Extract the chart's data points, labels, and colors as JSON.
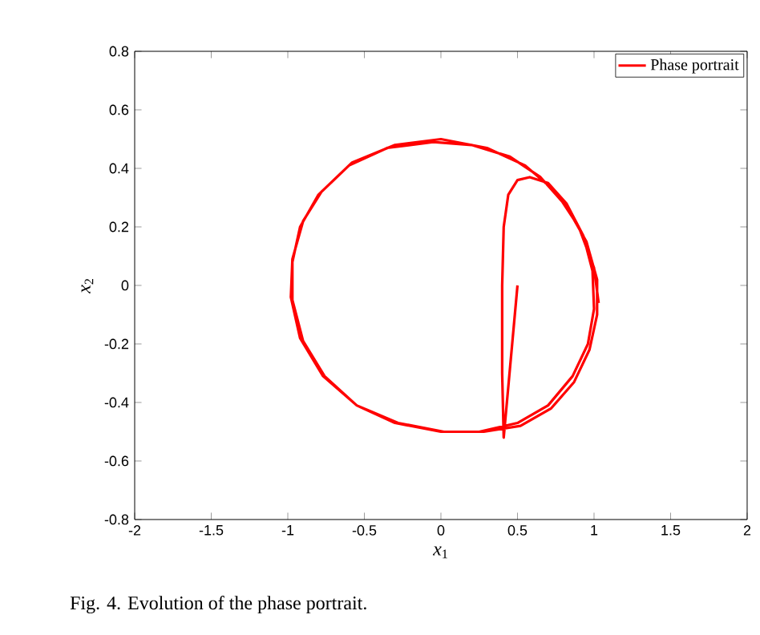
{
  "chart_data": {
    "type": "line",
    "xlabel": "*x*$_{1}$",
    "ylabel": "*x*$_{2}$",
    "annotations": [
      "Fig. 4.   Evolution of the phase portrait."
    ],
    "xlim": [
      -2,
      2
    ],
    "ylim": [
      -0.8,
      0.8
    ],
    "xticks": [
      -2,
      -1.5,
      -1,
      -0.5,
      0,
      0.5,
      1,
      1.5,
      2
    ],
    "yticks": [
      -0.8,
      -0.6,
      -0.4,
      -0.2,
      0,
      0.2,
      0.4,
      0.6,
      0.8
    ],
    "legend": "top right",
    "grid": false,
    "marker": "none",
    "line_style": "solid",
    "series": [
      {
        "name": "Phase portrait",
        "color": "#ff0000",
        "x": [
          0.5,
          0.41,
          0.4,
          0.4,
          0.41,
          0.44,
          0.5,
          0.58,
          0.7,
          0.82,
          0.93,
          0.99,
          1.0,
          0.96,
          0.86,
          0.7,
          0.5,
          0.25,
          0,
          -0.3,
          -0.55,
          -0.76,
          -0.9,
          -0.97,
          -0.97,
          -0.92,
          -0.8,
          -0.6,
          -0.35,
          -0.05,
          0.2,
          0.45,
          0.65,
          0.82,
          0.95,
          1.02,
          1.02,
          0.97,
          0.87,
          0.72,
          0.52,
          0.28,
          0.02,
          -0.28,
          -0.55,
          -0.77,
          -0.92,
          -0.98,
          -0.97,
          -0.9,
          -0.78,
          -0.58,
          -0.3,
          0,
          0.3,
          0.55,
          0.75,
          0.9,
          1.0,
          1.03
        ],
        "values": [
          0,
          -0.52,
          -0.3,
          0,
          0.2,
          0.31,
          0.36,
          0.37,
          0.35,
          0.28,
          0.17,
          0.05,
          -0.08,
          -0.2,
          -0.31,
          -0.41,
          -0.47,
          -0.5,
          -0.5,
          -0.47,
          -0.41,
          -0.31,
          -0.19,
          -0.05,
          0.08,
          0.2,
          0.31,
          0.41,
          0.47,
          0.49,
          0.48,
          0.44,
          0.37,
          0.27,
          0.15,
          0.02,
          -0.1,
          -0.22,
          -0.33,
          -0.42,
          -0.48,
          -0.5,
          -0.5,
          -0.47,
          -0.41,
          -0.31,
          -0.18,
          -0.04,
          0.09,
          0.22,
          0.32,
          0.42,
          0.48,
          0.5,
          0.47,
          0.41,
          0.32,
          0.2,
          0.06,
          -0.06
        ]
      }
    ]
  }
}
